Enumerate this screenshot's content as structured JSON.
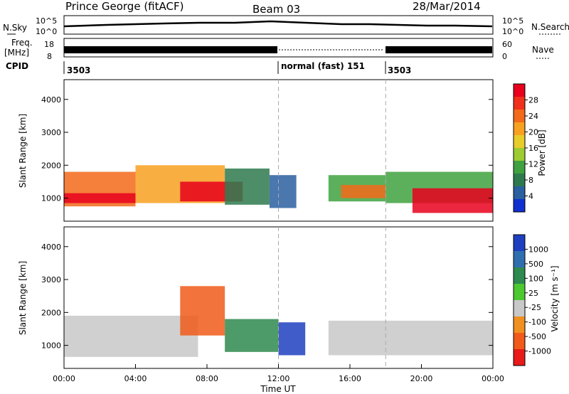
{
  "header": {
    "station": "Prince George (fitACF)",
    "beam": "Beam 03",
    "date": "28/Mar/2014"
  },
  "top_panels": {
    "nsky_label": "N.Sky",
    "nsky_ticks": [
      "10^5",
      "10^0"
    ],
    "nsearch_label": "N.Search",
    "nsearch_ticks": [
      "10^5",
      "10^0"
    ],
    "freq_label_1": "Freq.",
    "freq_label_2": "[MHz]",
    "freq_ticks": [
      "18",
      "8"
    ],
    "nave_label": "Nave",
    "nave_ticks": [
      "60",
      "0"
    ],
    "cpid_label": "CPID",
    "cpid_segments": [
      {
        "start": 0,
        "label": "3503"
      },
      {
        "start": 12,
        "label": "normal (fast) 151"
      },
      {
        "start": 18,
        "label": "3503"
      }
    ]
  },
  "power_colorbar": {
    "label": "Power [dB]",
    "ticks": [
      "28",
      "24",
      "20",
      "16",
      "12",
      "8",
      "4"
    ],
    "colors": [
      "#e8001c",
      "#f0301a",
      "#f36a1a",
      "#f8a020",
      "#e8cc2a",
      "#9ccc32",
      "#3fa23f",
      "#2e7a4e",
      "#2a5fa0",
      "#1030d0"
    ]
  },
  "velocity_colorbar": {
    "label": "Velocity [m s⁻¹]",
    "ticks": [
      "1000",
      "500",
      "100",
      "25",
      "-25",
      "-100",
      "-500",
      "-1000"
    ],
    "colors": [
      "#1e3fc0",
      "#2f6fb0",
      "#2e8a4e",
      "#4cc830",
      "#c8c8c8",
      "#f09020",
      "#f05a1a",
      "#e81a1a"
    ]
  },
  "time_axis": {
    "label": "Time UT",
    "ticks": [
      "00:00",
      "04:00",
      "08:00",
      "12:00",
      "16:00",
      "20:00",
      "00:00"
    ]
  },
  "chart_data": [
    {
      "type": "heatmap",
      "name": "power",
      "ylabel": "Slant Range [km]",
      "xlabel": "",
      "xlim": [
        0,
        24
      ],
      "ylim": [
        300,
        4600
      ],
      "yticks": [
        "4000",
        "3000",
        "2000",
        "1000"
      ],
      "dashed_vlines": [
        12,
        18
      ],
      "bands": [
        {
          "x0": 0.0,
          "x1": 4.0,
          "y0": 750,
          "y1": 1800,
          "color": "#f36a1a"
        },
        {
          "x0": 0.0,
          "x1": 4.0,
          "y0": 850,
          "y1": 1150,
          "color": "#e8001c"
        },
        {
          "x0": 4.0,
          "x1": 9.0,
          "y0": 850,
          "y1": 2000,
          "color": "#f8a020"
        },
        {
          "x0": 6.5,
          "x1": 10.0,
          "y0": 900,
          "y1": 1500,
          "color": "#e8001c"
        },
        {
          "x0": 9.0,
          "x1": 11.5,
          "y0": 800,
          "y1": 1900,
          "color": "#2e7a4e"
        },
        {
          "x0": 11.5,
          "x1": 13.0,
          "y0": 700,
          "y1": 1700,
          "color": "#2a5fa0"
        },
        {
          "x0": 14.8,
          "x1": 18.0,
          "y0": 900,
          "y1": 1700,
          "color": "#3fa23f"
        },
        {
          "x0": 15.5,
          "x1": 18.0,
          "y0": 1000,
          "y1": 1400,
          "color": "#f36a1a"
        },
        {
          "x0": 18.0,
          "x1": 24.0,
          "y0": 850,
          "y1": 1800,
          "color": "#3fa23f"
        },
        {
          "x0": 19.5,
          "x1": 24.0,
          "y0": 550,
          "y1": 1300,
          "color": "#e8001c"
        }
      ]
    },
    {
      "type": "heatmap",
      "name": "velocity",
      "ylabel": "Slant Range [km]",
      "xlabel": "Time UT",
      "xlim": [
        0,
        24
      ],
      "ylim": [
        300,
        4600
      ],
      "yticks": [
        "4000",
        "3000",
        "2000",
        "1000"
      ],
      "dashed_vlines": [
        12,
        18
      ],
      "bands": [
        {
          "x0": 0.0,
          "x1": 7.5,
          "y0": 650,
          "y1": 1900,
          "color": "#c8c8c8"
        },
        {
          "x0": 6.5,
          "x1": 9.0,
          "y0": 1300,
          "y1": 2800,
          "color": "#f05a1a"
        },
        {
          "x0": 9.0,
          "x1": 12.0,
          "y0": 800,
          "y1": 1800,
          "color": "#2e8a4e"
        },
        {
          "x0": 12.0,
          "x1": 13.5,
          "y0": 700,
          "y1": 1700,
          "color": "#1e3fc0"
        },
        {
          "x0": 14.8,
          "x1": 24.0,
          "y0": 700,
          "y1": 1750,
          "color": "#c8c8c8"
        }
      ]
    }
  ]
}
